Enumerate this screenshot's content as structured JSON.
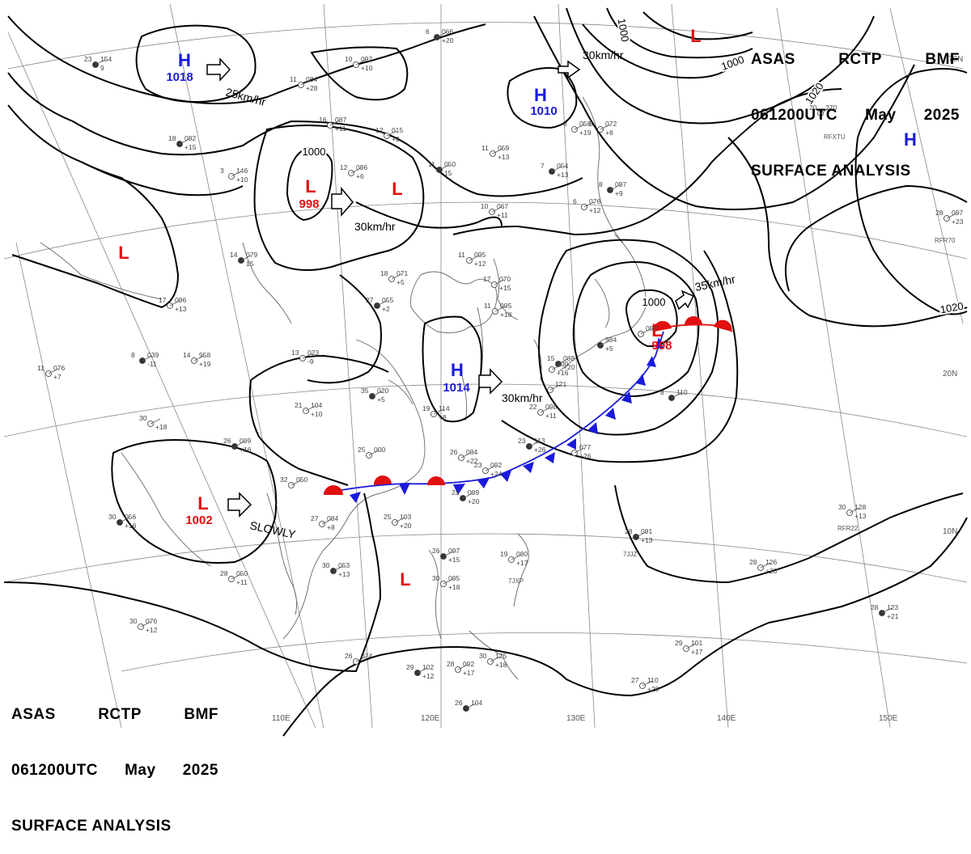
{
  "header": {
    "line1": [
      "ASAS",
      "RCTP",
      "BMF"
    ],
    "line2": [
      "061200UTC",
      "May",
      "2025"
    ],
    "line3": "SURFACE ANALYSIS"
  },
  "colors": {
    "high": "#1a1adc",
    "low": "#e01010",
    "cold_front": "#1a1adc",
    "warm_front": "#e01010",
    "isobar": "#000000",
    "grid": "#888888",
    "coast": "#555555"
  },
  "pressure_centers": [
    {
      "type": "H",
      "value": "1018"
    },
    {
      "type": "H",
      "value": "1010"
    },
    {
      "type": "H",
      "value": "1014"
    },
    {
      "type": "H",
      "value": ""
    },
    {
      "type": "L",
      "value": "998"
    },
    {
      "type": "L",
      "value": ""
    },
    {
      "type": "L",
      "value": ""
    },
    {
      "type": "L",
      "value": "1002"
    },
    {
      "type": "L",
      "value": "998"
    },
    {
      "type": "L",
      "value": ""
    },
    {
      "type": "L",
      "value": ""
    }
  ],
  "isobar_labels": [
    "1000",
    "1000",
    "1000",
    "1000",
    "1020",
    "1020"
  ],
  "motion_labels": [
    "25km/hr",
    "30km/hr",
    "30km/hr",
    "35km/hr",
    "30km/hr",
    "SLOWLY"
  ],
  "longitude_labels": [
    "110E",
    "120E",
    "130E",
    "140E",
    "150E"
  ],
  "latitude_labels": [
    "70N",
    "20N",
    "10N"
  ],
  "stations": [
    {
      "n": "23",
      "v": "154",
      "t": "9"
    },
    {
      "n": "11",
      "v": "084",
      "t": "+28"
    },
    {
      "n": "10",
      "v": "097",
      "t": "+10"
    },
    {
      "n": "6",
      "v": "066",
      "t": "+20"
    },
    {
      "n": "16",
      "v": "087",
      "t": "+11"
    },
    {
      "n": "12",
      "v": "015",
      "t": "+2"
    },
    {
      "n": "18",
      "v": "082",
      "t": "+15"
    },
    {
      "n": "3",
      "v": "146",
      "t": "+10"
    },
    {
      "n": "12",
      "v": "096",
      "t": "+6"
    },
    {
      "n": "11",
      "v": "050",
      "t": "15"
    },
    {
      "n": "11",
      "v": "059",
      "t": "+13"
    },
    {
      "n": "8",
      "v": "058",
      "t": "+19"
    },
    {
      "n": "7",
      "v": "054",
      "t": "+13"
    },
    {
      "n": "8",
      "v": "072",
      "t": "+8"
    },
    {
      "n": "6",
      "v": "076",
      "t": "+12"
    },
    {
      "n": "8",
      "v": "097",
      "t": "+9"
    },
    {
      "n": "10",
      "v": "067",
      "t": "+11"
    },
    {
      "n": "11",
      "v": "095",
      "t": "+12"
    },
    {
      "n": "14",
      "v": "079",
      "t": "15"
    },
    {
      "n": "18",
      "v": "071",
      "t": "+5"
    },
    {
      "n": "17",
      "v": "096",
      "t": "+13"
    },
    {
      "n": "8",
      "v": "039",
      "t": "-11"
    },
    {
      "n": "14",
      "v": "958",
      "t": "+19"
    },
    {
      "n": "13",
      "v": "023",
      "t": "-9"
    },
    {
      "n": "27",
      "v": "055",
      "t": "+2"
    },
    {
      "n": "17",
      "v": "070",
      "t": "+15"
    },
    {
      "n": "11",
      "v": "095",
      "t": "+18"
    },
    {
      "n": "15",
      "v": "088",
      "t": "+20"
    },
    {
      "n": "11",
      "v": "076",
      "t": "+7"
    },
    {
      "n": "30",
      "v": "",
      "t": "+18"
    },
    {
      "n": "35",
      "v": "020",
      "t": "+5"
    },
    {
      "n": "21",
      "v": "104",
      "t": "+10"
    },
    {
      "n": "19",
      "v": "114",
      "t": "+8"
    },
    {
      "n": "26",
      "v": "099",
      "t": "+16"
    },
    {
      "n": "25",
      "v": "000",
      "t": ""
    },
    {
      "n": "26",
      "v": "084",
      "t": "+22"
    },
    {
      "n": "23",
      "v": "113",
      "t": "+26"
    },
    {
      "n": "22",
      "v": "098",
      "t": "+11"
    },
    {
      "n": "23",
      "v": "092",
      "t": "+24"
    },
    {
      "n": "23",
      "v": "099",
      "t": "+20"
    },
    {
      "n": "25",
      "v": "103",
      "t": "+20"
    },
    {
      "n": "27",
      "v": "084",
      "t": "+8"
    },
    {
      "n": "30",
      "v": "056",
      "t": "+16"
    },
    {
      "n": "32",
      "v": "050",
      "t": ""
    },
    {
      "n": "28",
      "v": "050",
      "t": "+11"
    },
    {
      "n": "30",
      "v": "053",
      "t": "+13"
    },
    {
      "n": "30",
      "v": "076",
      "t": "+12"
    },
    {
      "n": "26",
      "v": "074",
      "t": ""
    },
    {
      "n": "29",
      "v": "102",
      "t": "+12"
    },
    {
      "n": "28",
      "v": "092",
      "t": "+17"
    },
    {
      "n": "30",
      "v": "125",
      "t": "+18"
    },
    {
      "n": "26",
      "v": "097",
      "t": "+15"
    },
    {
      "n": "30",
      "v": "095",
      "t": "+18"
    },
    {
      "n": "19",
      "v": "080",
      "t": "+17"
    },
    {
      "n": "28",
      "v": "091",
      "t": "+13"
    },
    {
      "n": "30",
      "v": "128",
      "t": "+13"
    },
    {
      "n": "28",
      "v": "126",
      "t": "+20"
    },
    {
      "n": "28",
      "v": "123",
      "t": "+21"
    },
    {
      "n": "29",
      "v": "101",
      "t": "+17"
    },
    {
      "n": "27",
      "v": "110",
      "t": "+20"
    },
    {
      "n": "26",
      "v": "104",
      "t": ""
    },
    {
      "n": "28",
      "v": "097",
      "t": "+23"
    },
    {
      "n": "20",
      "v": "270",
      "t": ""
    },
    {
      "n": "8",
      "v": "110",
      "t": ""
    },
    {
      "n": "",
      "v": "121",
      "t": ""
    },
    {
      "n": "",
      "v": "092",
      "t": ""
    },
    {
      "n": "",
      "v": "984",
      "t": "+5"
    },
    {
      "n": "",
      "v": "030",
      "t": "+16"
    },
    {
      "n": "",
      "v": "077",
      "t": "+26"
    },
    {
      "n": "",
      "v": "096",
      "t": "6"
    }
  ],
  "station_ids": [
    "7JXP",
    "7JJZ",
    "RFR22",
    "RFXTU",
    "RFR70"
  ]
}
